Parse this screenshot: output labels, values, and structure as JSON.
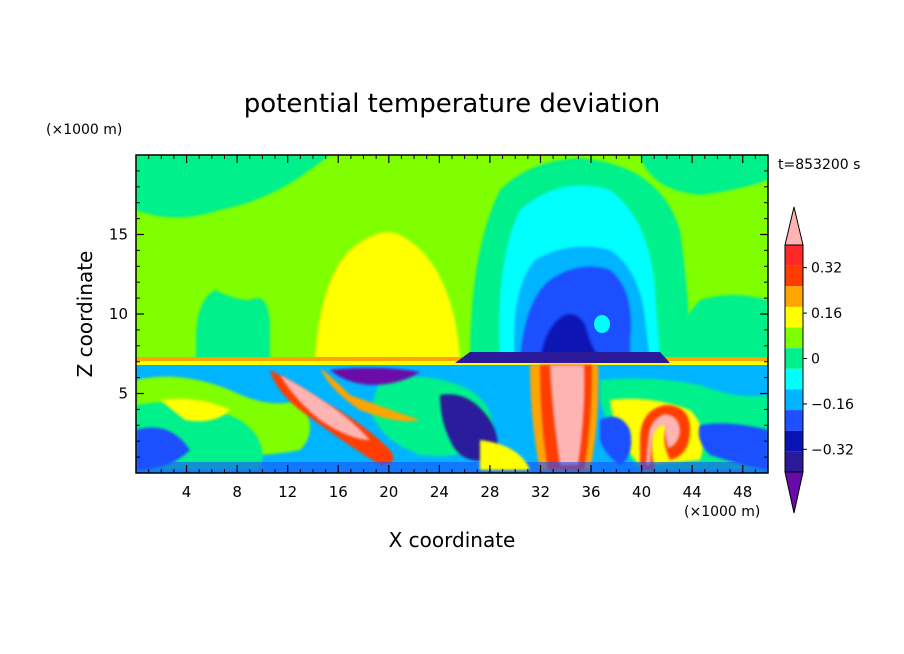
{
  "chart_data": {
    "type": "heatmap",
    "title": "potential temperature deviation",
    "xlabel": "X coordinate",
    "ylabel": "Z coordinate",
    "x_unit": "(×1000 m)",
    "y_unit": "(×1000 m)",
    "time_label": "t=853200 s",
    "xlim": [
      0,
      50
    ],
    "ylim": [
      0,
      20
    ],
    "x_ticks": [
      4,
      8,
      12,
      16,
      20,
      24,
      28,
      32,
      36,
      40,
      44,
      48
    ],
    "y_ticks": [
      5,
      10,
      15
    ],
    "colorbar": {
      "levels": [
        -0.4,
        -0.36,
        -0.32,
        -0.28,
        -0.24,
        -0.2,
        -0.16,
        -0.12,
        -0.08,
        -0.04,
        0,
        0.04,
        0.08,
        0.12,
        0.16,
        0.2,
        0.24,
        0.28,
        0.32,
        0.36,
        0.4
      ],
      "colors": [
        "#6a0aa8",
        "#2a1a9a",
        "#0a14b4",
        "#1e50ff",
        "#00b4ff",
        "#00ffff",
        "#00f08c",
        "#80ff00",
        "#ffff00",
        "#ffa500",
        "#ff3c00",
        "#ff2828",
        "#ffb4b4"
      ],
      "tick_labels": [
        "0.32",
        "0.16",
        "0",
        "−0.16",
        "−0.32"
      ],
      "tick_values": [
        0.32,
        0.16,
        0,
        -0.16,
        -0.32
      ]
    },
    "features": [
      {
        "x": 20,
        "z": 11,
        "value": 0.08,
        "desc": "warm anomaly aloft"
      },
      {
        "x": 34,
        "z": 12,
        "value": -0.3,
        "desc": "cold anomaly aloft"
      },
      {
        "x": 35,
        "z": 9,
        "value": -0.4,
        "desc": "cold core"
      },
      {
        "x": 34,
        "z": 3,
        "value": 0.4,
        "desc": "warm plume"
      },
      {
        "x": 42,
        "z": 3,
        "value": 0.36,
        "desc": "warm hook"
      }
    ]
  }
}
